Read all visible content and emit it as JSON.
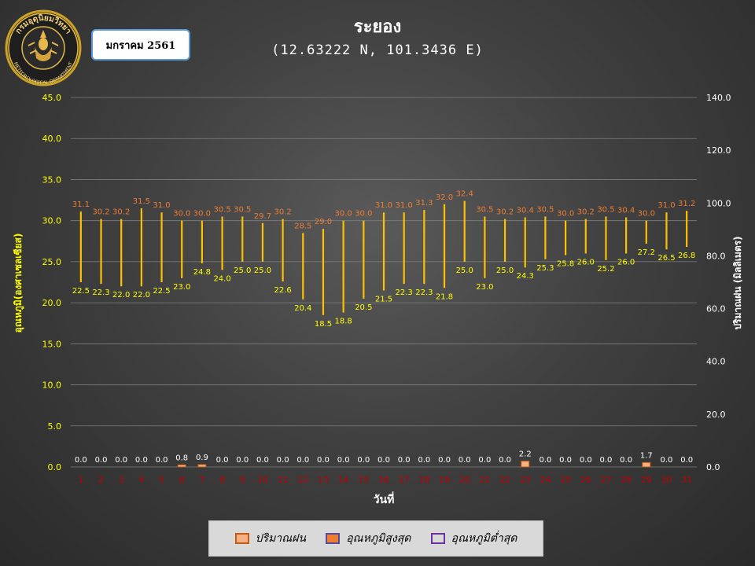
{
  "month_label": "มกราคม 2561",
  "title": "ระยอง",
  "subtitle": "(12.63222 N, 101.3436 E)",
  "logo": {
    "icon": "meteorological-department-seal-icon",
    "top_text": "กรมอุตุนิยมวิทยา",
    "bottom_text": "METEOROLOGICAL DEPARTMENT"
  },
  "legend": [
    {
      "label": "ปริมาณฝน",
      "color": "#f4b183",
      "border": "#c55a11"
    },
    {
      "label": "อุณหภูมิสูงสุด",
      "color": "#ed7d31",
      "border": "#5b4a9b"
    },
    {
      "label": "อุณหภูมิต่ำสุด",
      "color": "#d9d9d9",
      "border": "#7030a0"
    }
  ],
  "colors": {
    "bar": "#ffc000",
    "max_label": "#ed7d31",
    "min_label": "#ffff00",
    "rain_bar": "#f4b183",
    "rain_label": "#ffffff",
    "left_axis": "#ffff00",
    "right_axis": "#ffffff",
    "x_tick": "#c00000",
    "grid": "#7f7f7f"
  },
  "chart_data": {
    "type": "bar",
    "xlabel": "วันที่",
    "ylabel": "อุณหภูมิ(องศาเซลเซียส)",
    "y2label": "ปริมาณฝน (มิลลิเมตร)",
    "ylim": [
      0,
      45
    ],
    "y2lim": [
      0,
      140
    ],
    "yticks": [
      "0.0",
      "5.0",
      "10.0",
      "15.0",
      "20.0",
      "25.0",
      "30.0",
      "35.0",
      "40.0",
      "45.0"
    ],
    "y2ticks": [
      "0.0",
      "20.0",
      "40.0",
      "60.0",
      "80.0",
      "100.0",
      "120.0",
      "140.0"
    ],
    "categories": [
      1,
      2,
      3,
      4,
      5,
      6,
      7,
      8,
      9,
      10,
      11,
      12,
      13,
      14,
      15,
      16,
      17,
      18,
      19,
      20,
      21,
      22,
      23,
      24,
      25,
      26,
      27,
      28,
      29,
      30,
      31
    ],
    "series": [
      {
        "name": "อุณหภูมิสูงสุด",
        "values": [
          31.1,
          30.2,
          30.2,
          31.5,
          31.0,
          30.0,
          30.0,
          30.5,
          30.5,
          29.7,
          30.2,
          28.5,
          29.0,
          30.0,
          30.0,
          31.0,
          31.0,
          31.3,
          32.0,
          32.4,
          30.5,
          30.2,
          30.4,
          30.5,
          30.0,
          30.2,
          30.5,
          30.4,
          30.0,
          31.0,
          31.2
        ]
      },
      {
        "name": "อุณหภูมิต่ำสุด",
        "values": [
          22.5,
          22.3,
          22.0,
          22.0,
          22.5,
          23.0,
          24.8,
          24.0,
          25.0,
          25.0,
          22.6,
          20.4,
          18.5,
          18.8,
          20.5,
          21.5,
          22.3,
          22.3,
          21.8,
          25.0,
          23.0,
          25.0,
          24.3,
          25.3,
          25.8,
          26.0,
          25.2,
          26.0,
          27.2,
          26.5,
          26.8
        ]
      },
      {
        "name": "ปริมาณฝน",
        "values": [
          0.0,
          0.0,
          0.0,
          0.0,
          0.0,
          0.8,
          0.9,
          0.0,
          0.0,
          0.0,
          0.0,
          0.0,
          0.0,
          0.0,
          0.0,
          0.0,
          0.0,
          0.0,
          0.0,
          0.0,
          0.0,
          0.0,
          2.2,
          0.0,
          0.0,
          0.0,
          0.0,
          0.0,
          1.7,
          0.0,
          0.0
        ]
      }
    ]
  }
}
